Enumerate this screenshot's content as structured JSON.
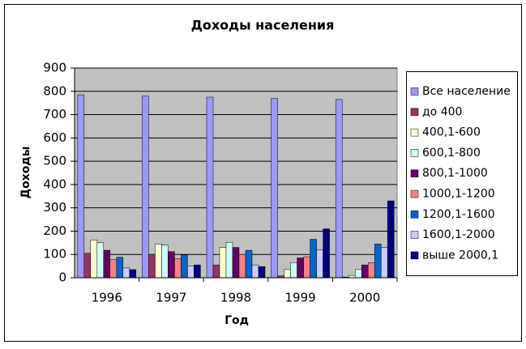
{
  "chart_data": {
    "type": "bar",
    "title": "Доходы населения",
    "x_label": "Год",
    "y_label": "Доходы",
    "categories": [
      "1996",
      "1997",
      "1998",
      "1999",
      "2000"
    ],
    "series": [
      {
        "name": "Все население",
        "color": "#9999ff",
        "values": [
          785,
          780,
          775,
          770,
          765
        ]
      },
      {
        "name": "до 400",
        "color": "#993366",
        "values": [
          105,
          95,
          55,
          8,
          3
        ]
      },
      {
        "name": "400,1-600",
        "color": "#ffffcc",
        "values": [
          162,
          145,
          130,
          35,
          10
        ]
      },
      {
        "name": "600,1-800",
        "color": "#ccffff",
        "values": [
          150,
          140,
          152,
          65,
          35
        ]
      },
      {
        "name": "800,1-1000",
        "color": "#660066",
        "values": [
          118,
          112,
          130,
          85,
          55
        ]
      },
      {
        "name": "1000,1-1200",
        "color": "#ff8080",
        "values": [
          78,
          82,
          100,
          90,
          65
        ]
      },
      {
        "name": "1200,1-1600",
        "color": "#0066cc",
        "values": [
          88,
          98,
          118,
          165,
          145
        ]
      },
      {
        "name": "1600,1-2000",
        "color": "#ccccff",
        "values": [
          42,
          50,
          55,
          120,
          130
        ]
      },
      {
        "name": "выше 2000,1",
        "color": "#000080",
        "values": [
          35,
          55,
          48,
          210,
          330
        ]
      }
    ],
    "ylim": [
      0,
      900
    ],
    "yticks": [
      0,
      100,
      200,
      300,
      400,
      500,
      600,
      700,
      800,
      900
    ],
    "grid": true,
    "legend": "right"
  }
}
